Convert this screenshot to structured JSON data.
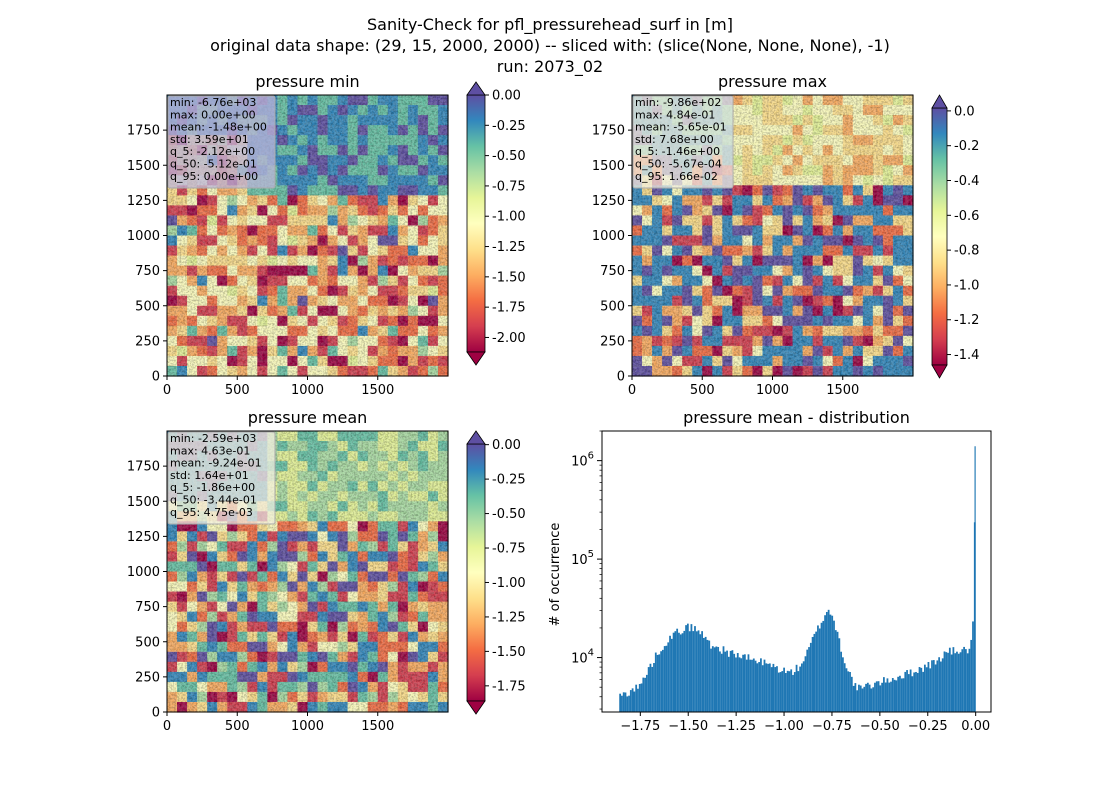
{
  "figure": {
    "suptitle_lines": [
      "Sanity-Check for pfl_pressurehead_surf in [m]",
      "original data shape: (29, 15, 2000, 2000) -- sliced with: (slice(None, None, None), -1)",
      "run: 2073_02"
    ]
  },
  "colors": {
    "histogram_bar": "#1f77b4",
    "spectral_colormap": [
      "#9e0142",
      "#d53e4f",
      "#f46d43",
      "#fdae61",
      "#fee08b",
      "#ffffbf",
      "#e6f598",
      "#abdda4",
      "#66c2a5",
      "#3288bd",
      "#5e4fa2"
    ]
  },
  "chart_data": [
    {
      "type": "heatmap",
      "title": "pressure min",
      "x_ticks": [
        "0",
        "500",
        "1000",
        "1500"
      ],
      "y_ticks": [
        "0",
        "250",
        "500",
        "750",
        "1000",
        "1250",
        "1500",
        "1750"
      ],
      "xlim": [
        0,
        2000
      ],
      "ylim": [
        0,
        2000
      ],
      "colorbar": {
        "colormap": "Spectral",
        "range": [
          -2.12,
          0.0
        ],
        "ticks": [
          "0.00",
          "-0.25",
          "-0.50",
          "-0.75",
          "-1.00",
          "-1.25",
          "-1.50",
          "-1.75",
          "-2.00"
        ],
        "extend": "both"
      },
      "stats": [
        "min: -6.76e+03",
        "max: 0.00e+00",
        "mean: -1.48e+00",
        "std: 3.59e+01",
        "q_5: -2.12e+00",
        "q_50: -5.12e-01",
        "q_95: 0.00e+00"
      ]
    },
    {
      "type": "heatmap",
      "title": "pressure max",
      "x_ticks": [
        "0",
        "500",
        "1000",
        "1500"
      ],
      "y_ticks": [
        "0",
        "250",
        "500",
        "750",
        "1000",
        "1250",
        "1500",
        "1750"
      ],
      "xlim": [
        0,
        2000
      ],
      "ylim": [
        0,
        2000
      ],
      "colorbar": {
        "colormap": "Spectral",
        "range": [
          -1.46,
          0.0166
        ],
        "ticks": [
          "0.0",
          "-0.2",
          "-0.4",
          "-0.6",
          "-0.8",
          "-1.0",
          "-1.2",
          "-1.4"
        ],
        "extend": "both"
      },
      "stats": [
        "min: -9.86e+02",
        "max: 4.84e-01",
        "mean: -5.65e-01",
        "std: 7.68e+00",
        "q_5: -1.46e+00",
        "q_50: -5.67e-04",
        "q_95: 1.66e-02"
      ]
    },
    {
      "type": "heatmap",
      "title": "pressure mean",
      "x_ticks": [
        "0",
        "500",
        "1000",
        "1500"
      ],
      "y_ticks": [
        "0",
        "250",
        "500",
        "750",
        "1000",
        "1250",
        "1500",
        "1750"
      ],
      "xlim": [
        0,
        2000
      ],
      "ylim": [
        0,
        2000
      ],
      "colorbar": {
        "colormap": "Spectral",
        "range": [
          -1.86,
          0.00475
        ],
        "ticks": [
          "0.00",
          "-0.25",
          "-0.50",
          "-0.75",
          "-1.00",
          "-1.25",
          "-1.50",
          "-1.75"
        ],
        "extend": "both"
      },
      "stats": [
        "min: -2.59e+03",
        "max: 4.63e-01",
        "mean: -9.24e-01",
        "std: 1.64e+01",
        "q_5: -1.86e+00",
        "q_50: -3.44e-01",
        "q_95: 4.75e-03"
      ]
    },
    {
      "type": "bar",
      "title": "pressure mean - distribution",
      "ylabel": "# of occurrence",
      "yscale": "log",
      "xlim": [
        -1.95,
        0.08
      ],
      "ylim": [
        2800,
        2000000
      ],
      "x_ticks": [
        "−1.75",
        "−1.50",
        "−1.25",
        "−1.00",
        "−0.75",
        "−0.50",
        "−0.25",
        "0.00"
      ],
      "x_tick_values": [
        -1.75,
        -1.5,
        -1.25,
        -1.0,
        -0.75,
        -0.5,
        -0.25,
        0.0
      ],
      "y_ticks": [
        {
          "value": 10000,
          "base": "10",
          "exp": "4"
        },
        {
          "value": 100000,
          "base": "10",
          "exp": "5"
        },
        {
          "value": 1000000,
          "base": "10",
          "exp": "6"
        }
      ],
      "x": [
        -1.86,
        -1.75,
        -1.7,
        -1.65,
        -1.6,
        -1.55,
        -1.5,
        -1.47,
        -1.43,
        -1.38,
        -1.3,
        -1.2,
        -1.1,
        -1.02,
        -0.97,
        -0.92,
        -0.88,
        -0.84,
        -0.8,
        -0.77,
        -0.75,
        -0.72,
        -0.69,
        -0.66,
        -0.64,
        -0.62,
        -0.6,
        -0.5,
        -0.4,
        -0.3,
        -0.2,
        -0.15,
        -0.08,
        -0.03,
        -0.01,
        0.0
      ],
      "y": [
        4000,
        5200,
        8000,
        12000,
        15500,
        18500,
        20500,
        20000,
        17500,
        13500,
        11500,
        10000,
        8800,
        7600,
        7000,
        8000,
        11000,
        17000,
        24000,
        31000,
        27000,
        17500,
        10000,
        7000,
        5800,
        4800,
        4900,
        5600,
        6400,
        7500,
        9200,
        11500,
        11800,
        12000,
        25000,
        1400000
      ]
    }
  ]
}
